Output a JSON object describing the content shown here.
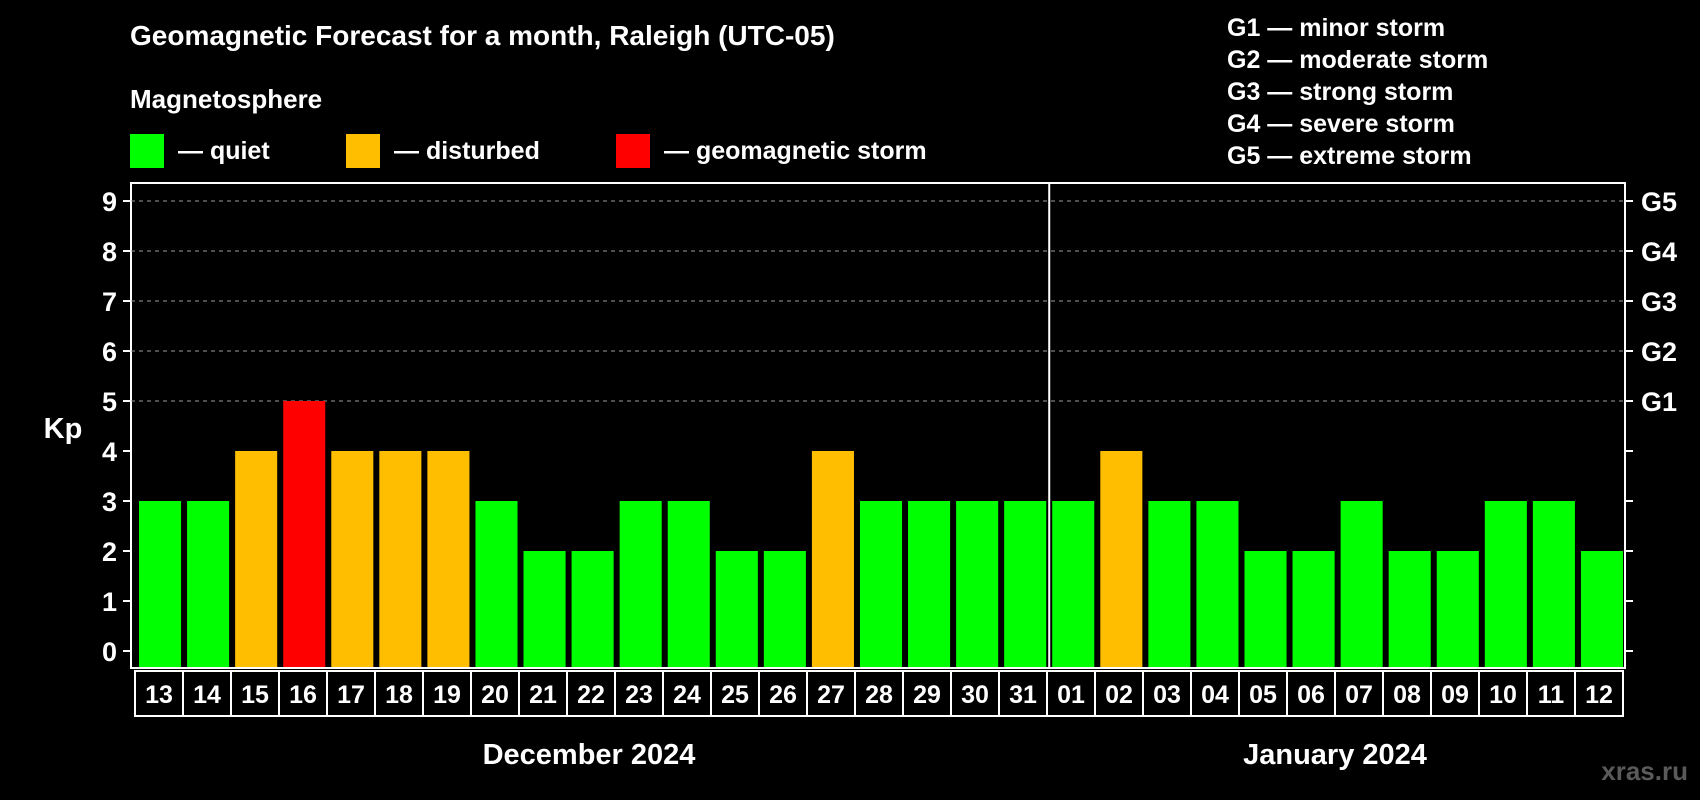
{
  "title": "Geomagnetic Forecast for a month, Raleigh (UTC-05)",
  "legend": {
    "title": "Magnetosphere",
    "items": [
      {
        "label": "— quiet",
        "color": "#00ff00"
      },
      {
        "label": "— disturbed",
        "color": "#ffbf00"
      },
      {
        "label": "— geomagnetic storm",
        "color": "#ff0000"
      }
    ]
  },
  "g_scale": [
    "G1 — minor storm",
    "G2 — moderate storm",
    "G3 — strong storm",
    "G4 — severe storm",
    "G5 — extreme storm"
  ],
  "watermark": "xras.ru",
  "chart_data": {
    "type": "bar",
    "ylabel": "Kp",
    "ylim": [
      0,
      9
    ],
    "yticks": [
      0,
      1,
      2,
      3,
      4,
      5,
      6,
      7,
      8,
      9
    ],
    "right_axis_labels": [
      {
        "value": 5,
        "label": "G1"
      },
      {
        "value": 6,
        "label": "G2"
      },
      {
        "value": 7,
        "label": "G3"
      },
      {
        "value": 8,
        "label": "G4"
      },
      {
        "value": 9,
        "label": "G5"
      }
    ],
    "grid": "dashed horizontal at 5-9",
    "categories": [
      "13",
      "14",
      "15",
      "16",
      "17",
      "18",
      "19",
      "20",
      "21",
      "22",
      "23",
      "24",
      "25",
      "26",
      "27",
      "28",
      "29",
      "30",
      "31",
      "01",
      "02",
      "03",
      "04",
      "05",
      "06",
      "07",
      "08",
      "09",
      "10",
      "11",
      "12"
    ],
    "values": [
      3,
      3,
      4,
      5,
      4,
      4,
      4,
      3,
      2,
      2,
      3,
      3,
      2,
      2,
      4,
      3,
      3,
      3,
      3,
      3,
      4,
      3,
      3,
      2,
      2,
      3,
      2,
      2,
      3,
      3,
      2
    ],
    "colors": {
      "quiet": "#00ff00",
      "disturbed": "#ffbf00",
      "storm": "#ff0000"
    },
    "months": [
      {
        "label": "December 2024",
        "days": 19
      },
      {
        "label": "January 2024",
        "days": 12
      }
    ]
  }
}
